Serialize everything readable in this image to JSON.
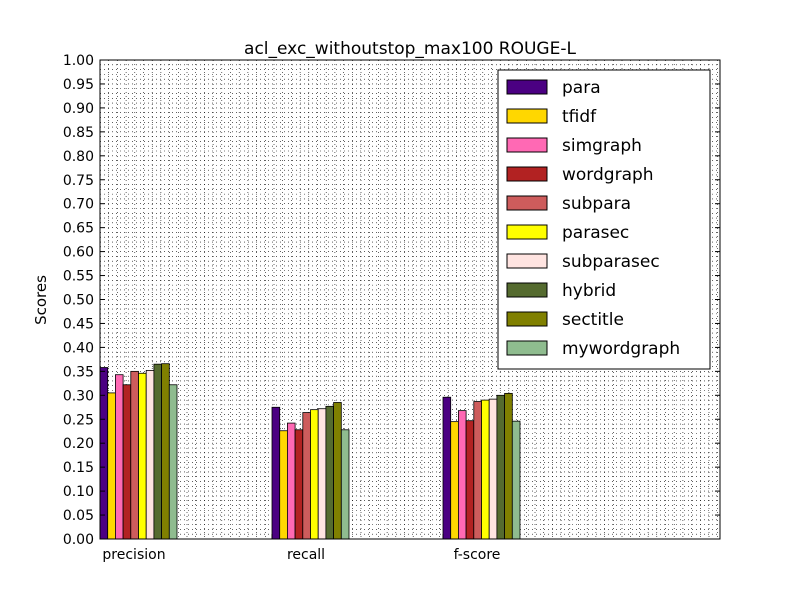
{
  "chart_data": {
    "type": "bar",
    "title": "acl_exc_withoutstop_max100 ROUGE-L",
    "xlabel": "",
    "ylabel": "Scores",
    "ylim": [
      0,
      1.0
    ],
    "yticks": [
      "0.00",
      "0.05",
      "0.10",
      "0.15",
      "0.20",
      "0.25",
      "0.30",
      "0.35",
      "0.40",
      "0.45",
      "0.50",
      "0.55",
      "0.60",
      "0.65",
      "0.70",
      "0.75",
      "0.80",
      "0.85",
      "0.90",
      "0.95",
      "1.00"
    ],
    "categories": [
      "precision",
      "recall",
      "f-score"
    ],
    "grid": true,
    "legend_position": "top-right",
    "series": [
      {
        "name": "para",
        "color": "#4b0082",
        "values": [
          0.358,
          0.275,
          0.296
        ]
      },
      {
        "name": "tfidf",
        "color": "#ffd700",
        "values": [
          0.305,
          0.226,
          0.245
        ]
      },
      {
        "name": "simgraph",
        "color": "#ff69b4",
        "values": [
          0.343,
          0.242,
          0.268
        ]
      },
      {
        "name": "wordgraph",
        "color": "#b22222",
        "values": [
          0.322,
          0.228,
          0.247
        ]
      },
      {
        "name": "subpara",
        "color": "#cd5c5c",
        "values": [
          0.35,
          0.264,
          0.287
        ]
      },
      {
        "name": "parasec",
        "color": "#ffff00",
        "values": [
          0.346,
          0.27,
          0.29
        ]
      },
      {
        "name": "subparasec",
        "color": "#ffe4e1",
        "values": [
          0.352,
          0.272,
          0.292
        ]
      },
      {
        "name": "hybrid",
        "color": "#556b2f",
        "values": [
          0.365,
          0.277,
          0.3
        ]
      },
      {
        "name": "sectitle",
        "color": "#808000",
        "values": [
          0.366,
          0.285,
          0.304
        ]
      },
      {
        "name": "mywordgraph",
        "color": "#8fbc8f",
        "values": [
          0.322,
          0.228,
          0.246
        ]
      }
    ]
  }
}
